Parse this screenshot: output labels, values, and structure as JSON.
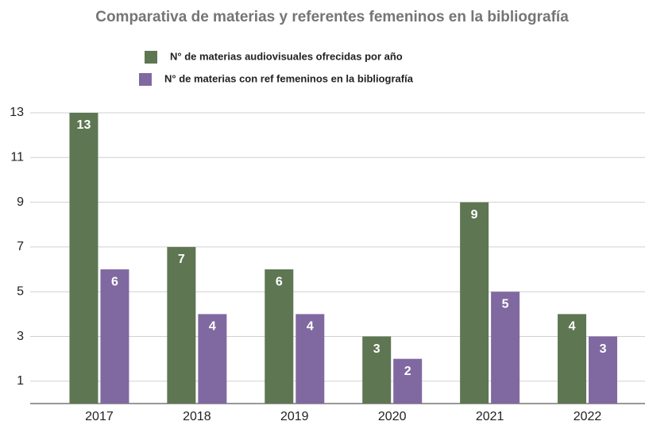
{
  "chart_data": {
    "type": "bar",
    "title": "Comparativa de materias y referentes femeninos en la bibliografía",
    "categories": [
      "2017",
      "2018",
      "2019",
      "2020",
      "2021",
      "2022"
    ],
    "series": [
      {
        "name": "N° de materias audiovisuales ofrecidas por año",
        "color": "#5e7752",
        "values": [
          13,
          7,
          6,
          3,
          9,
          4
        ]
      },
      {
        "name": "N° de materias con ref femeninos en la bibliografía",
        "color": "#8069a0",
        "values": [
          6,
          4,
          4,
          2,
          5,
          3
        ]
      }
    ],
    "ylim": [
      0,
      13
    ],
    "yticks": [
      1,
      3,
      5,
      7,
      9,
      11,
      13
    ],
    "grid": true,
    "legend": "top"
  }
}
